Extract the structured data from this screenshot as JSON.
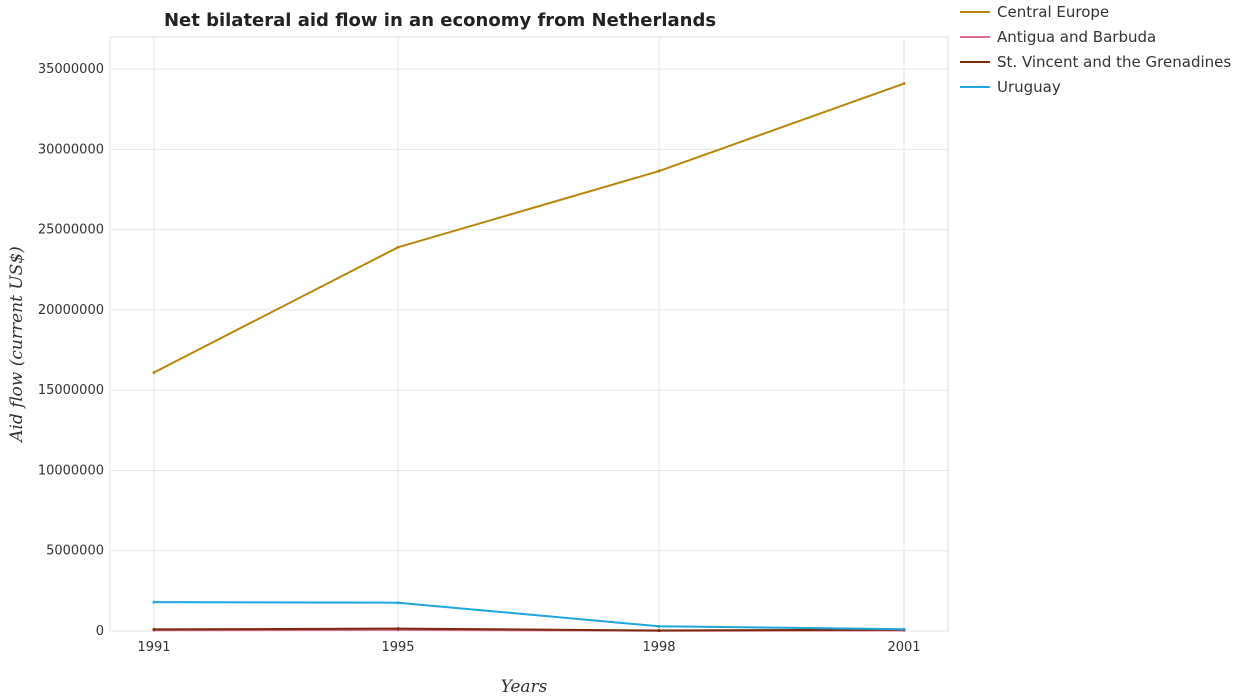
{
  "chart_data": {
    "type": "line",
    "title": "Net bilateral aid flow in an economy from Netherlands",
    "xlabel": "Years",
    "ylabel": "Aid flow (current US$)",
    "x": [
      "1991",
      "1995",
      "1998",
      "2001"
    ],
    "ylim": [
      0,
      37000000
    ],
    "yticks": [
      0,
      5000000,
      10000000,
      15000000,
      20000000,
      25000000,
      30000000,
      35000000
    ],
    "ytick_labels": [
      "0",
      "5000000",
      "10000000",
      "15000000",
      "20000000",
      "25000000",
      "30000000",
      "35000000"
    ],
    "grid": true,
    "legend_position": "top-right",
    "series": [
      {
        "name": "Central Europe",
        "color": "#b8860b",
        "values": [
          16100000,
          23900000,
          28650000,
          34100000
        ]
      },
      {
        "name": "Antigua and Barbuda",
        "color": "#d66b8f",
        "values": [
          50000,
          70000,
          20000,
          30000
        ]
      },
      {
        "name": "St. Vincent and the Grenadines",
        "color": "#7a2a0a",
        "values": [
          100000,
          150000,
          30000,
          80000
        ]
      },
      {
        "name": "Uruguay",
        "color": "#1ea7dc",
        "values": [
          1800000,
          1760000,
          290000,
          110000
        ]
      }
    ]
  }
}
